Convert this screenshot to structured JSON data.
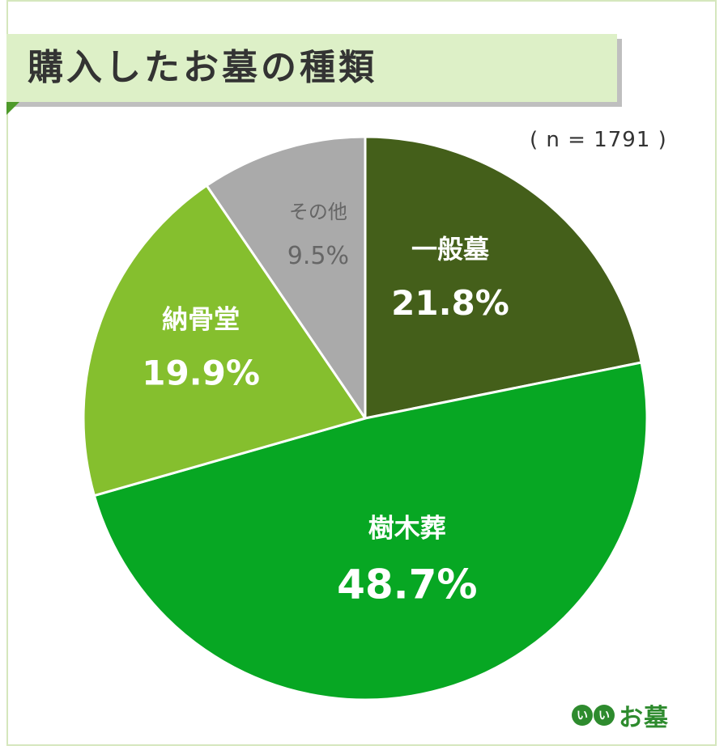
{
  "title": "購入したお墓の種類",
  "sample_size": "( n = 1791 )",
  "brand": {
    "badge_chars": [
      "い",
      "い"
    ],
    "text": "お墓"
  },
  "chart_data": {
    "type": "pie",
    "title": "購入したお墓の種類",
    "slices": [
      {
        "label": "一般墓",
        "value": 21.8,
        "display": "21.8%",
        "color": "#445f1a",
        "text_color": "#ffffff"
      },
      {
        "label": "樹木葬",
        "value": 48.7,
        "display": "48.7%",
        "color": "#07a723",
        "text_color": "#ffffff"
      },
      {
        "label": "納骨堂",
        "value": 19.9,
        "display": "19.9%",
        "color": "#85bf2e",
        "text_color": "#ffffff"
      },
      {
        "label": "その他",
        "value": 9.5,
        "display": "9.5%",
        "color": "#aaaaaa",
        "text_color": "#666666"
      }
    ],
    "start_angle": "12 o'clock",
    "direction": "clockwise"
  }
}
